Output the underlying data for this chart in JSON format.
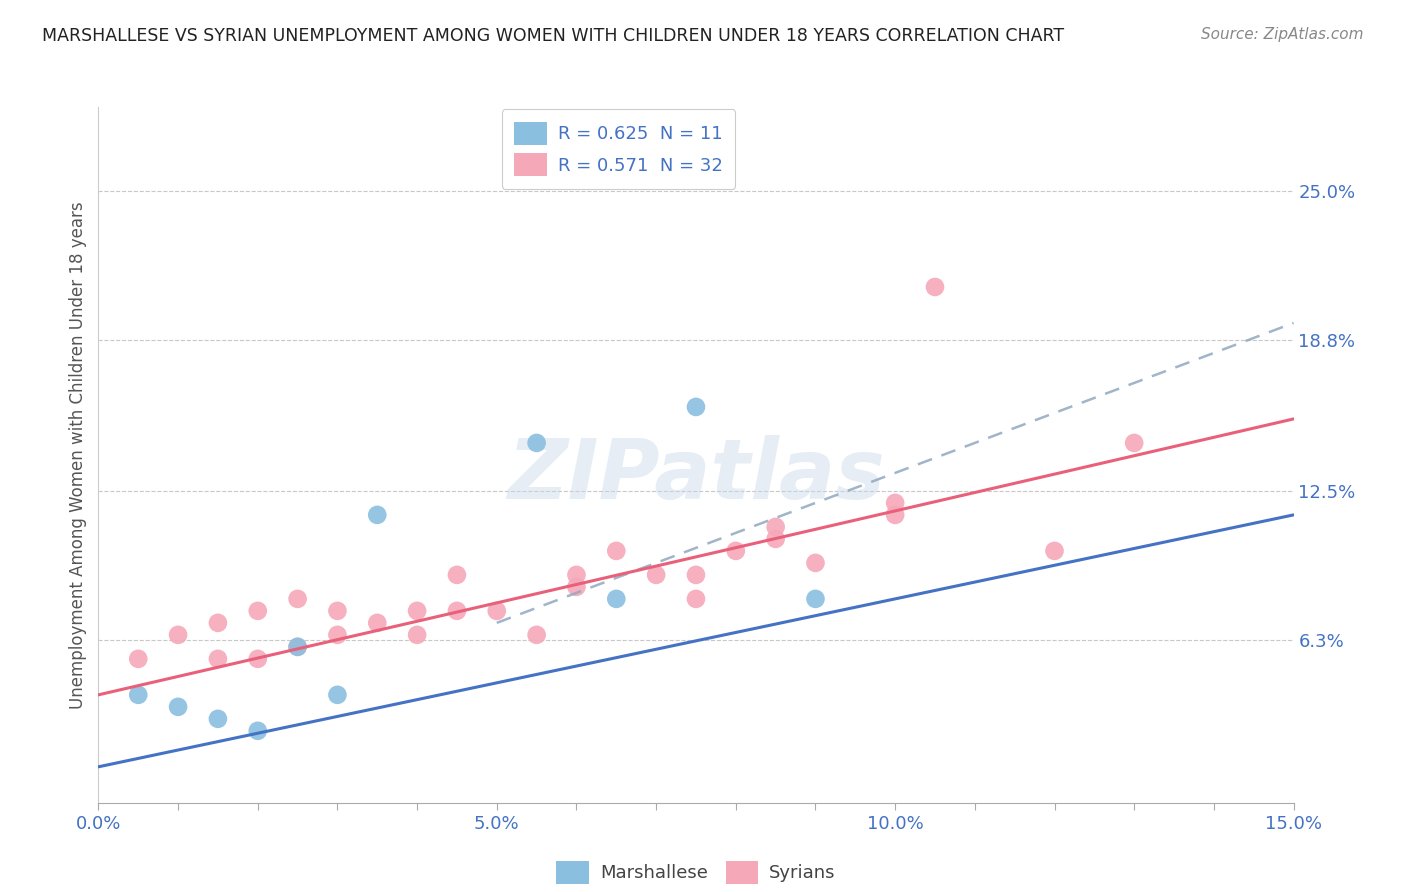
{
  "title": "MARSHALLESE VS SYRIAN UNEMPLOYMENT AMONG WOMEN WITH CHILDREN UNDER 18 YEARS CORRELATION CHART",
  "source": "Source: ZipAtlas.com",
  "ylabel": "Unemployment Among Women with Children Under 18 years",
  "xlim": [
    0.0,
    0.15
  ],
  "ylim": [
    -0.005,
    0.285
  ],
  "ytick_labels": [
    "6.3%",
    "12.5%",
    "18.8%",
    "25.0%"
  ],
  "ytick_values": [
    0.063,
    0.125,
    0.188,
    0.25
  ],
  "xtick_values": [
    0.0,
    0.01,
    0.02,
    0.03,
    0.04,
    0.05,
    0.06,
    0.07,
    0.08,
    0.09,
    0.1,
    0.11,
    0.12,
    0.13,
    0.14,
    0.15
  ],
  "xtick_labels": [
    "0.0%",
    "",
    "",
    "",
    "",
    "5.0%",
    "",
    "",
    "",
    "",
    "10.0%",
    "",
    "",
    "",
    "",
    "15.0%"
  ],
  "marshallese_x": [
    0.005,
    0.01,
    0.015,
    0.02,
    0.025,
    0.03,
    0.035,
    0.055,
    0.065,
    0.075,
    0.09
  ],
  "marshallese_y": [
    0.04,
    0.035,
    0.03,
    0.025,
    0.06,
    0.04,
    0.115,
    0.145,
    0.08,
    0.16,
    0.08
  ],
  "syrians_x": [
    0.005,
    0.01,
    0.015,
    0.015,
    0.02,
    0.02,
    0.025,
    0.025,
    0.03,
    0.03,
    0.035,
    0.04,
    0.04,
    0.045,
    0.045,
    0.05,
    0.055,
    0.06,
    0.06,
    0.065,
    0.07,
    0.075,
    0.075,
    0.08,
    0.085,
    0.085,
    0.09,
    0.1,
    0.1,
    0.105,
    0.12,
    0.13
  ],
  "syrians_y": [
    0.055,
    0.065,
    0.055,
    0.07,
    0.055,
    0.075,
    0.06,
    0.08,
    0.065,
    0.075,
    0.07,
    0.065,
    0.075,
    0.075,
    0.09,
    0.075,
    0.065,
    0.085,
    0.09,
    0.1,
    0.09,
    0.08,
    0.09,
    0.1,
    0.11,
    0.105,
    0.095,
    0.12,
    0.115,
    0.21,
    0.1,
    0.145
  ],
  "marshallese_line": [
    0.0,
    0.15,
    0.01,
    0.115
  ],
  "syrians_line": [
    0.0,
    0.15,
    0.04,
    0.155
  ],
  "dashed_line": [
    0.05,
    0.15,
    0.07,
    0.195
  ],
  "marshallese_color": "#8BBFE0",
  "syrians_color": "#F5A8B8",
  "marshallese_line_color": "#4472C4",
  "syrians_line_color": "#E8607A",
  "conf_line_color": "#90A8C0",
  "legend_R_marshallese": "0.625",
  "legend_N_marshallese": "11",
  "legend_R_syrians": "0.571",
  "legend_N_syrians": "32",
  "watermark": "ZIPatlas",
  "background_color": "#FFFFFF",
  "grid_color": "#C8C8C8",
  "tick_color": "#4472C4",
  "label_color": "#555555"
}
